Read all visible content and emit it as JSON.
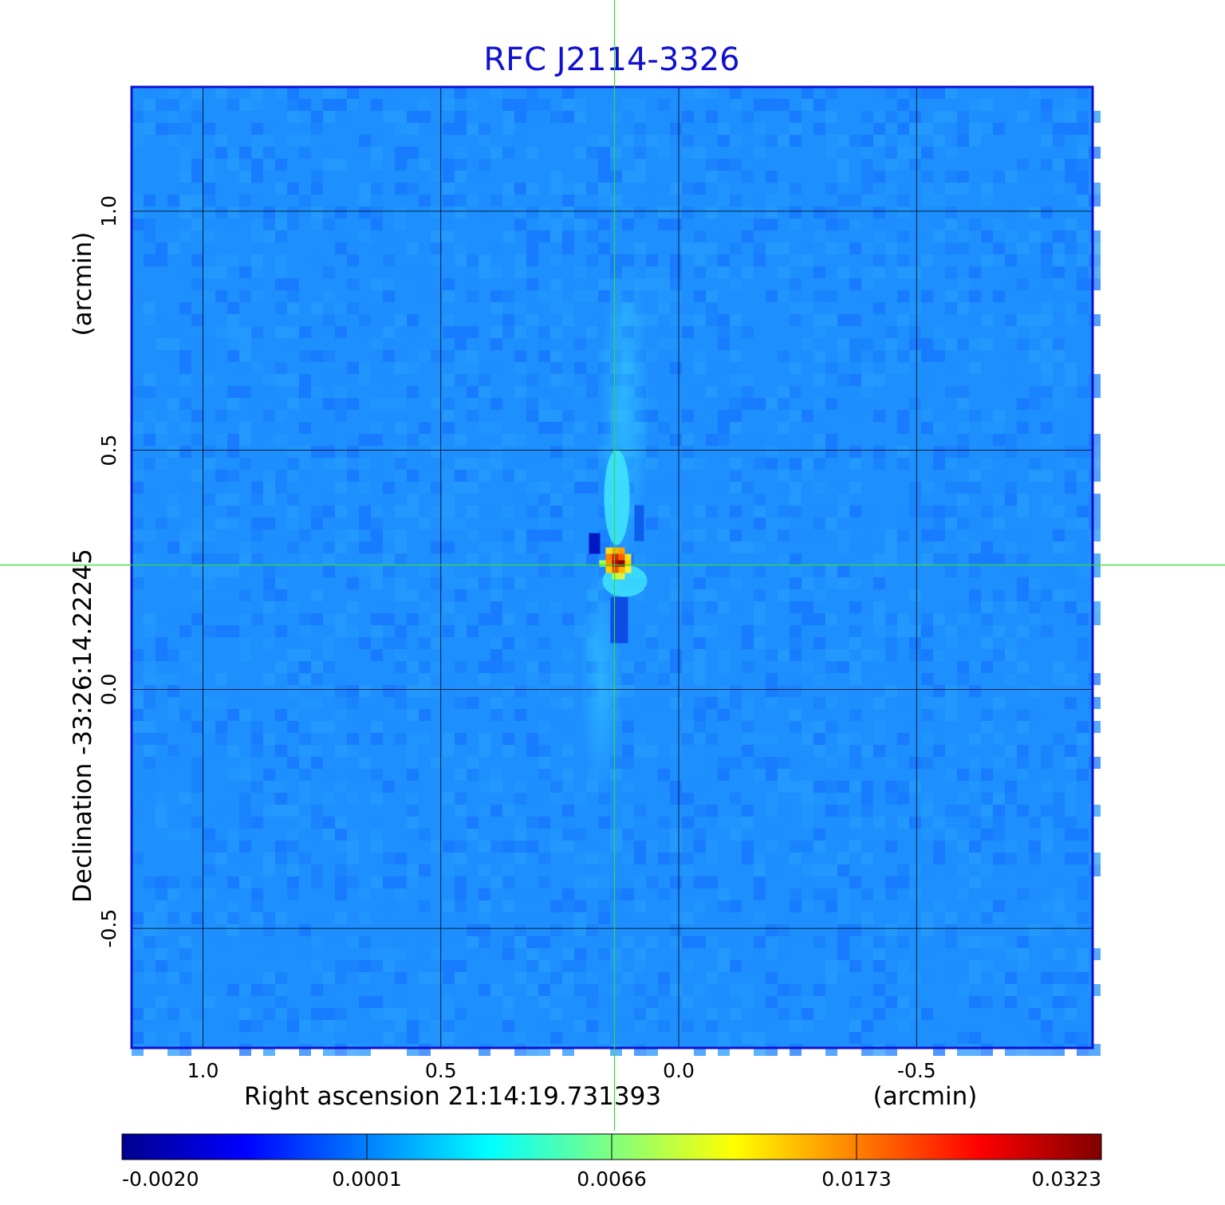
{
  "chart_data": {
    "type": "heatmap",
    "title": "RFC J2114-3326",
    "xlabel": "Right ascension  21:14:19.731393",
    "xunit": "(arcmin)",
    "ylabel": "Declination  -33:26:14.22245",
    "yunit": "(arcmin)",
    "x_ticks": [
      "1.0",
      "0.5",
      "0.0",
      "-0.5"
    ],
    "x_tick_values": [
      1.0,
      0.5,
      0.0,
      -0.5
    ],
    "y_ticks": [
      "1.0",
      "0.5",
      "0.0",
      "-0.5"
    ],
    "y_tick_values": [
      1.0,
      0.5,
      0.0,
      -0.5
    ],
    "xlim": [
      1.15,
      -0.87
    ],
    "ylim": [
      -0.75,
      1.26
    ],
    "grid": true,
    "colormap": "jet",
    "colorbar_ticks": [
      "-0.0020",
      "0.0001",
      "0.0066",
      "0.0173",
      "0.0323"
    ],
    "colorbar_range": [
      -0.002,
      0.0323
    ],
    "background_value": 0.0001,
    "peak": {
      "x": 0.13,
      "y": 0.26,
      "value": 0.0323
    },
    "crosshair": {
      "x": 0.135,
      "y": 0.26
    },
    "colors": {
      "frame": "#1010d0",
      "title": "#1010d0",
      "crosshair": "#33dd33",
      "background": "#1e8fff"
    }
  }
}
